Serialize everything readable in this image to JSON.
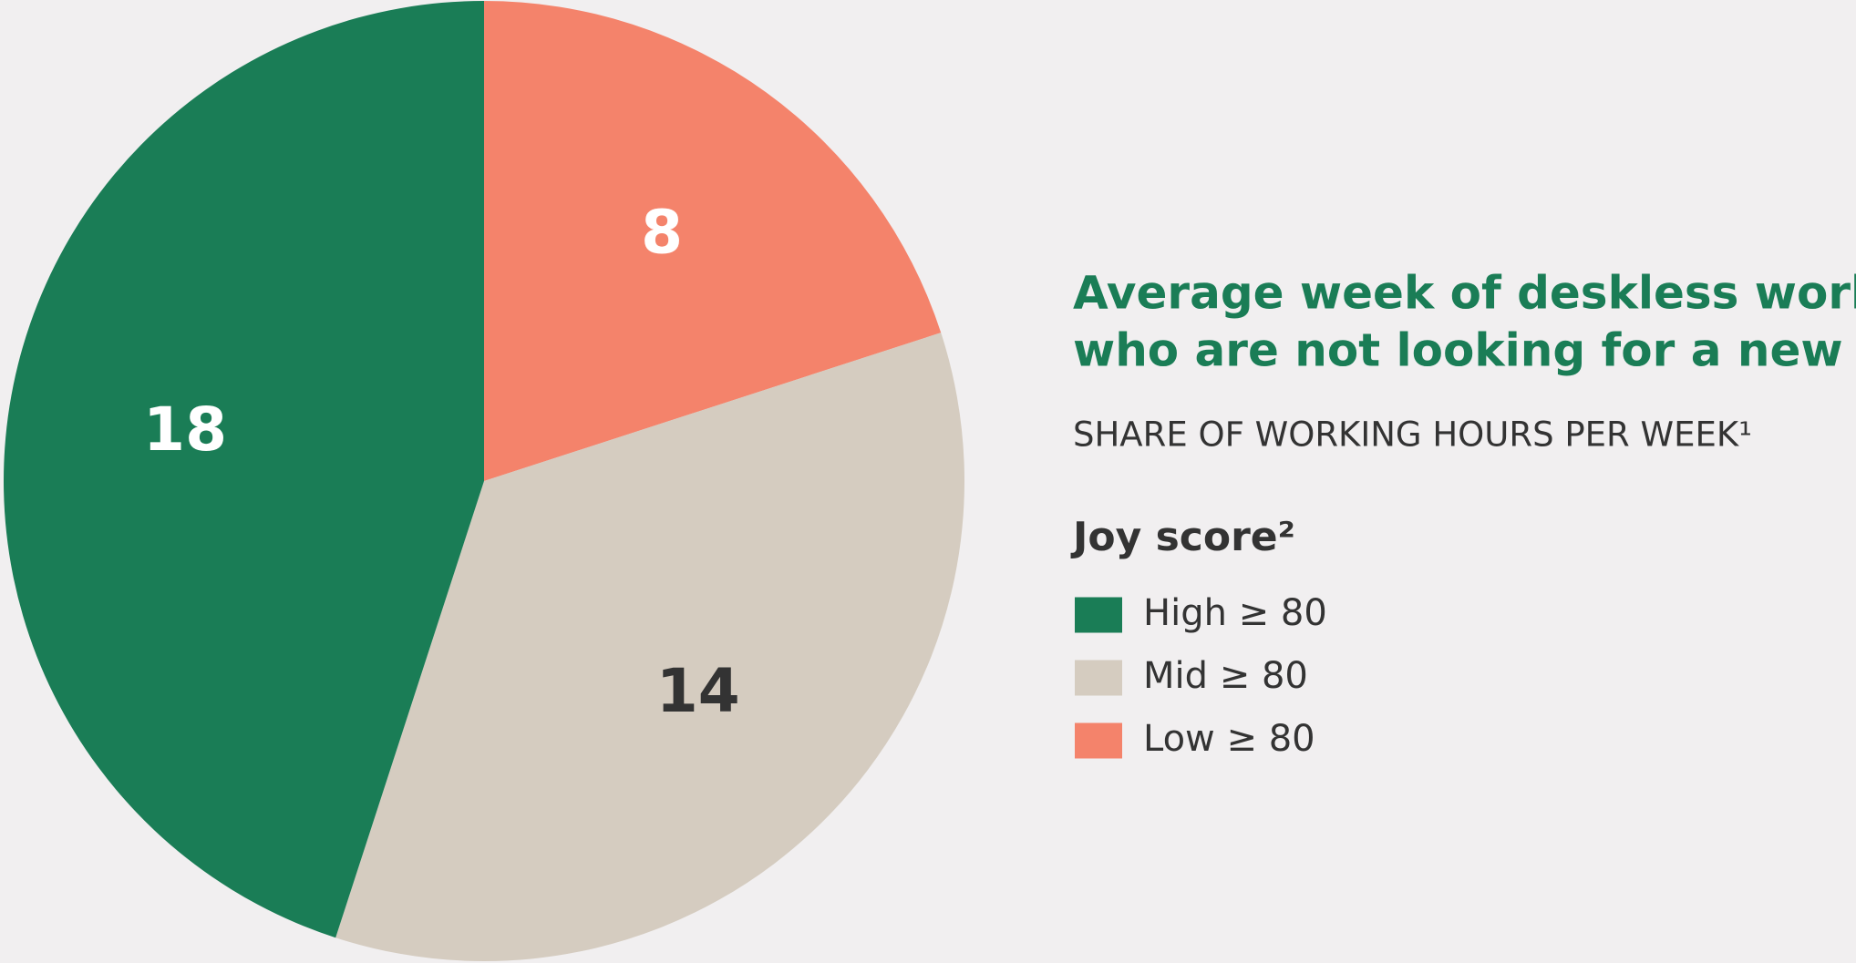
{
  "chart_data": {
    "type": "pie",
    "title": [
      "Average week of deskless workers",
      "who are not looking for a new job"
    ],
    "subtitle": "SHARE OF WORKING HOURS PER WEEK¹",
    "legend_title": "Joy score²",
    "categories": [
      "High ≥ 80",
      "Mid ≥ 80",
      "Low ≥ 80"
    ],
    "values": [
      18,
      14,
      8
    ],
    "colors": [
      "#1a7d56",
      "#d5ccc0",
      "#f4836b"
    ],
    "label_colors": [
      "#ffffff",
      "#333333",
      "#ffffff"
    ],
    "legend": "right"
  }
}
